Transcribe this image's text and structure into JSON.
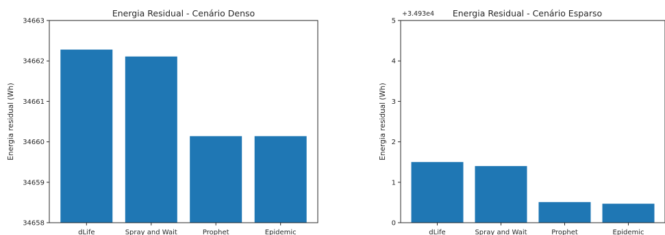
{
  "chart_data": [
    {
      "type": "bar",
      "title": "Energia Residual - Cenário Denso",
      "xlabel": "",
      "ylabel": "Energia residual (Wh)",
      "categories": [
        "dLife",
        "Spray and Wait",
        "Prophet",
        "Epidemic"
      ],
      "values": [
        34662.28,
        34662.11,
        34660.14,
        34660.14
      ],
      "ylim": [
        34658,
        34663
      ],
      "yticks": [
        "34658",
        "34659",
        "34660",
        "34661",
        "34662",
        "34663"
      ],
      "color": "#1f77b4",
      "grid": false
    },
    {
      "type": "bar",
      "title": "Energia Residual - Cenário Esparso",
      "xlabel": "",
      "ylabel": "Energia residual (Wh)",
      "axis_offset_label": "+3.493e4",
      "categories": [
        "dLife",
        "Spray and Wait",
        "Prophet",
        "Epidemic"
      ],
      "values": [
        1.5,
        1.4,
        0.51,
        0.47
      ],
      "ylim": [
        0,
        5
      ],
      "yticks": [
        "0",
        "1",
        "2",
        "3",
        "4",
        "5"
      ],
      "color": "#1f77b4",
      "grid": false
    }
  ]
}
